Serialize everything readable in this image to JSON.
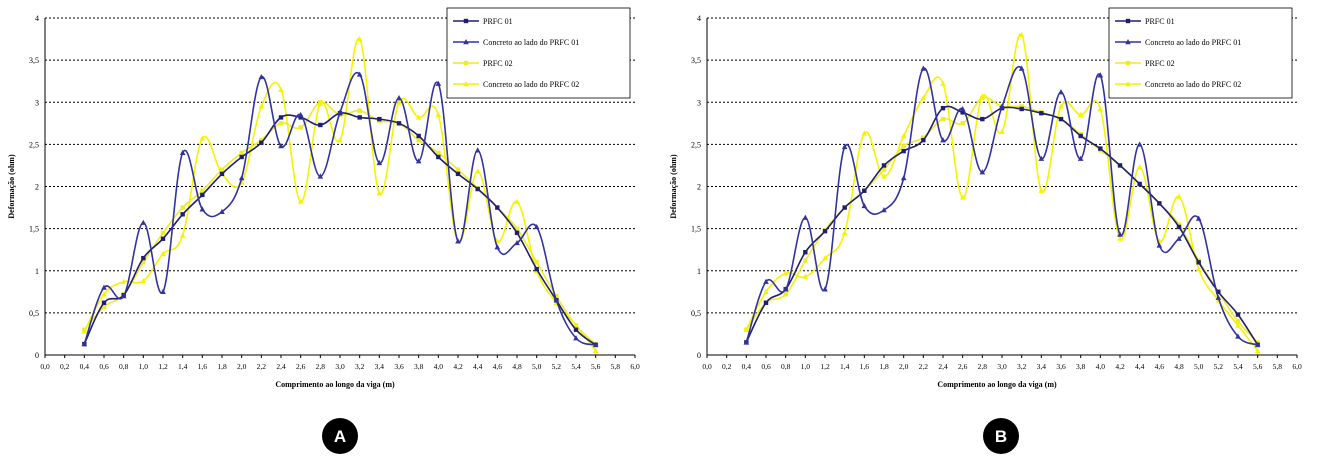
{
  "chart_data": [
    {
      "type": "line",
      "panel_label": "A",
      "xlabel": "Comprimento ao longo da viga (m)",
      "ylabel": "Deformação (ohm)",
      "xlim": [
        0,
        6
      ],
      "ylim": [
        0,
        4
      ],
      "x_ticks": [
        "0,0",
        "0,2",
        "0,4",
        "0,6",
        "0,8",
        "1,0",
        "1,2",
        "1,4",
        "1,6",
        "1,8",
        "2,0",
        "2,2",
        "2,4",
        "2,6",
        "2,8",
        "3,0",
        "3,2",
        "3,4",
        "3,6",
        "3,8",
        "4,0",
        "4,2",
        "4,4",
        "4,6",
        "4,8",
        "5,0",
        "5,2",
        "5,4",
        "5,6",
        "5,8",
        "6,0"
      ],
      "y_ticks": [
        "0",
        "0,5",
        "1",
        "1,5",
        "2",
        "2,5",
        "3",
        "3,5",
        "4"
      ],
      "grid": "horizontal dotted",
      "legend_position": "top-right",
      "x": [
        0.4,
        0.6,
        0.8,
        1.0,
        1.2,
        1.4,
        1.6,
        1.8,
        2.0,
        2.2,
        2.4,
        2.6,
        2.8,
        3.0,
        3.2,
        3.4,
        3.6,
        3.8,
        4.0,
        4.2,
        4.4,
        4.6,
        4.8,
        5.0,
        5.2,
        5.4,
        5.6
      ],
      "series": [
        {
          "name": "PRFC 01",
          "color": "#1f1f6e",
          "marker": "square",
          "values": [
            0.13,
            0.62,
            0.71,
            1.15,
            1.38,
            1.67,
            1.9,
            2.15,
            2.35,
            2.52,
            2.82,
            2.82,
            2.73,
            2.87,
            2.82,
            2.8,
            2.75,
            2.6,
            2.35,
            2.15,
            1.97,
            1.75,
            1.45,
            1.02,
            0.65,
            0.3,
            0.12
          ]
        },
        {
          "name": "Concreto ao lado do PRFC 01",
          "color": "#3232a0",
          "marker": "triangle",
          "values": [
            0.13,
            0.8,
            0.7,
            1.57,
            0.75,
            2.4,
            1.73,
            1.7,
            2.1,
            3.3,
            2.48,
            2.85,
            2.12,
            2.88,
            3.33,
            2.28,
            3.05,
            2.3,
            3.22,
            1.35,
            2.43,
            1.28,
            1.33,
            1.52,
            0.65,
            0.2,
            0.12
          ]
        },
        {
          "name": "PRFC 02",
          "color": "#ecec2a",
          "marker": "square",
          "values": [
            0.3,
            0.57,
            0.72,
            1.1,
            1.45,
            1.75,
            1.95,
            2.2,
            2.4,
            2.55,
            2.75,
            2.7,
            3.0,
            2.85,
            2.9,
            2.78,
            2.75,
            2.55,
            2.4,
            2.2,
            1.98,
            1.75,
            1.5,
            1.1,
            0.7,
            0.35,
            0.13
          ]
        },
        {
          "name": "Concreto ao lado do PRFC 02",
          "color": "#f4f400",
          "marker": "triangle",
          "values": [
            0.28,
            0.72,
            0.87,
            0.88,
            1.2,
            1.42,
            2.57,
            2.15,
            2.05,
            2.95,
            3.15,
            1.82,
            2.98,
            2.55,
            3.75,
            1.92,
            3.0,
            2.82,
            2.85,
            1.35,
            2.18,
            1.35,
            1.82,
            1.0,
            0.62,
            0.35,
            0.05
          ]
        }
      ]
    },
    {
      "type": "line",
      "panel_label": "B",
      "xlabel": "Comprimento ao longo da viga (m)",
      "ylabel": "Deformação (ohm)",
      "xlim": [
        0,
        6
      ],
      "ylim": [
        0,
        4
      ],
      "x_ticks": [
        "0,0",
        "0,2",
        "0,4",
        "0,6",
        "0,8",
        "1,0",
        "1,2",
        "1,4",
        "1,6",
        "1,8",
        "2,0",
        "2,2",
        "2,4",
        "2,6",
        "2,8",
        "3,0",
        "3,2",
        "3,4",
        "3,6",
        "3,8",
        "4,0",
        "4,2",
        "4,4",
        "4,6",
        "4,8",
        "5,0",
        "5,2",
        "5,4",
        "5,6",
        "5,8",
        "6,0"
      ],
      "y_ticks": [
        "0",
        "0,5",
        "1",
        "1,5",
        "2",
        "2,5",
        "3",
        "3,5",
        "4"
      ],
      "grid": "horizontal dotted",
      "legend_position": "top-right",
      "x": [
        0.4,
        0.6,
        0.8,
        1.0,
        1.2,
        1.4,
        1.6,
        1.8,
        2.0,
        2.2,
        2.4,
        2.6,
        2.8,
        3.0,
        3.2,
        3.4,
        3.6,
        3.8,
        4.0,
        4.2,
        4.4,
        4.6,
        4.8,
        5.0,
        5.2,
        5.4,
        5.6
      ],
      "series": [
        {
          "name": "PRFC 01",
          "color": "#1f1f6e",
          "marker": "square",
          "values": [
            0.15,
            0.62,
            0.78,
            1.22,
            1.47,
            1.75,
            1.95,
            2.25,
            2.42,
            2.55,
            2.93,
            2.88,
            2.8,
            2.93,
            2.92,
            2.87,
            2.8,
            2.6,
            2.45,
            2.25,
            2.03,
            1.8,
            1.52,
            1.1,
            0.75,
            0.48,
            0.12
          ]
        },
        {
          "name": "Concreto ao lado do PRFC 01",
          "color": "#3232a0",
          "marker": "triangle",
          "values": [
            0.15,
            0.87,
            0.78,
            1.63,
            0.78,
            2.47,
            1.77,
            1.72,
            2.1,
            3.4,
            2.55,
            2.92,
            2.17,
            2.95,
            3.4,
            2.33,
            3.12,
            2.33,
            3.32,
            1.43,
            2.5,
            1.3,
            1.38,
            1.62,
            0.68,
            0.22,
            0.12
          ]
        },
        {
          "name": "PRFC 02",
          "color": "#ecec2a",
          "marker": "square",
          "values": [
            0.3,
            0.62,
            0.72,
            1.12,
            1.48,
            1.75,
            1.95,
            2.2,
            2.48,
            2.58,
            2.8,
            2.75,
            3.05,
            2.95,
            2.95,
            2.88,
            2.8,
            2.62,
            2.43,
            2.25,
            2.03,
            1.8,
            1.55,
            1.12,
            0.75,
            0.4,
            0.15
          ]
        },
        {
          "name": "Concreto ao lado do PRFC 02",
          "color": "#f4f400",
          "marker": "triangle",
          "values": [
            0.3,
            0.75,
            0.97,
            0.93,
            1.15,
            1.45,
            2.63,
            2.12,
            2.6,
            3.05,
            3.22,
            1.87,
            3.07,
            2.65,
            3.8,
            1.95,
            2.95,
            2.85,
            2.92,
            1.38,
            2.23,
            1.35,
            1.88,
            1.02,
            0.65,
            0.35,
            0.05
          ]
        }
      ]
    }
  ]
}
